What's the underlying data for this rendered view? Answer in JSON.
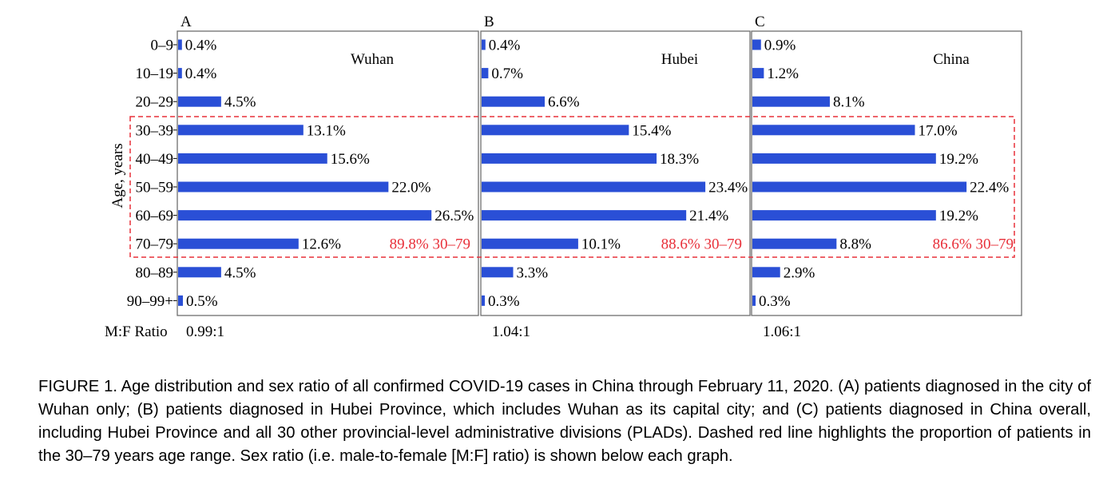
{
  "chart_data": {
    "type": "bar",
    "orientation": "horizontal",
    "ylabel": "Age, years",
    "categories": [
      "0–9",
      "10–19",
      "20–29",
      "30–39",
      "40–49",
      "50–59",
      "60–69",
      "70–79",
      "80–89",
      "90–99+"
    ],
    "ratio_label": "M:F Ratio",
    "bar_color": "#2a4fd6",
    "highlight_color": "#e8303a",
    "panels": [
      {
        "letter": "A",
        "region": "Wuhan",
        "values": [
          0.4,
          0.4,
          4.5,
          13.1,
          15.6,
          22.0,
          26.5,
          12.6,
          4.5,
          0.5
        ],
        "labels": [
          "0.4%",
          "0.4%",
          "4.5%",
          "13.1%",
          "15.6%",
          "22.0%",
          "26.5%",
          "12.6%",
          "4.5%",
          "0.5%"
        ],
        "highlight": "89.8% 30–79",
        "ratio": "0.99:1"
      },
      {
        "letter": "B",
        "region": "Hubei",
        "values": [
          0.4,
          0.7,
          6.6,
          15.4,
          18.3,
          23.4,
          21.4,
          10.1,
          3.3,
          0.3
        ],
        "labels": [
          "0.4%",
          "0.7%",
          "6.6%",
          "15.4%",
          "18.3%",
          "23.4%",
          "21.4%",
          "10.1%",
          "3.3%",
          "0.3%"
        ],
        "highlight": "88.6% 30–79",
        "ratio": "1.04:1"
      },
      {
        "letter": "C",
        "region": "China",
        "values": [
          0.9,
          1.2,
          8.1,
          17.0,
          19.2,
          22.4,
          19.2,
          8.8,
          2.9,
          0.3
        ],
        "labels": [
          "0.9%",
          "1.2%",
          "8.1%",
          "17.0%",
          "19.2%",
          "22.4%",
          "19.2%",
          "8.8%",
          "2.9%",
          "0.3%"
        ],
        "highlight": "86.6% 30–79",
        "ratio": "1.06:1"
      }
    ]
  },
  "caption": "FIGURE 1. Age distribution and sex ratio of all confirmed COVID-19 cases in China through February 11, 2020. (A) patients diagnosed in the city of Wuhan only; (B) patients diagnosed in Hubei Province, which includes Wuhan as its capital city; and (C) patients diagnosed in China overall, including Hubei Province and all 30 other provincial-level administrative divisions (PLADs). Dashed red line highlights the proportion of patients in the 30–79 years age range. Sex ratio (i.e. male-to-female [M:F] ratio) is shown below each graph."
}
